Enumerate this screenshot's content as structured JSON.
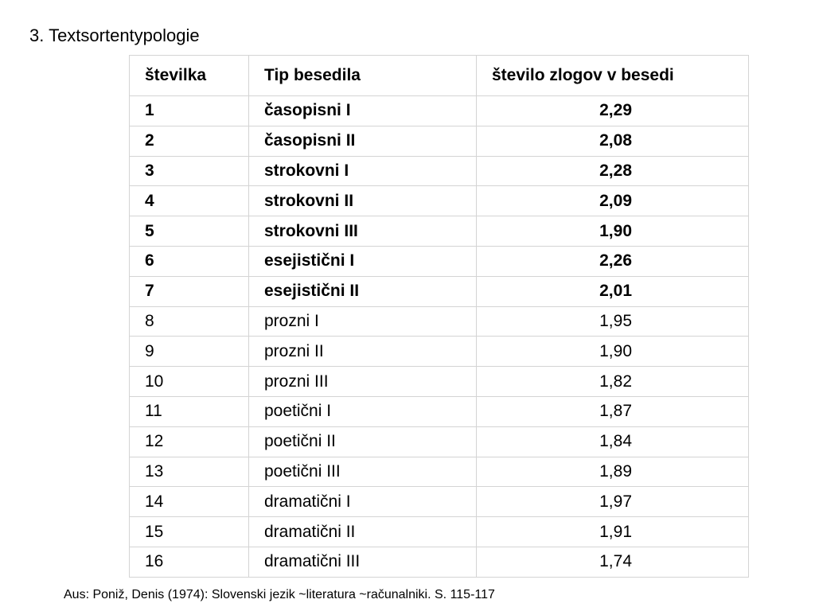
{
  "slide": {
    "title": "3. Textsortentypologie"
  },
  "table": {
    "headers": [
      "številka",
      "Tip besedila",
      "število zlogov v besedi"
    ],
    "rows": [
      {
        "nr": "1",
        "type": "časopisni I",
        "value": "2,29",
        "bold": true
      },
      {
        "nr": "2",
        "type": "časopisni II",
        "value": "2,08",
        "bold": true
      },
      {
        "nr": "3",
        "type": "strokovni I",
        "value": "2,28",
        "bold": true
      },
      {
        "nr": "4",
        "type": "strokovni II",
        "value": "2,09",
        "bold": true
      },
      {
        "nr": "5",
        "type": "strokovni III",
        "value": "1,90",
        "bold": true
      },
      {
        "nr": "6",
        "type": "esejistični I",
        "value": "2,26",
        "bold": true
      },
      {
        "nr": "7",
        "type": "esejistični II",
        "value": "2,01",
        "bold": true
      },
      {
        "nr": "8",
        "type": "prozni I",
        "value": "1,95",
        "bold": false
      },
      {
        "nr": "9",
        "type": "prozni II",
        "value": "1,90",
        "bold": false
      },
      {
        "nr": "10",
        "type": "prozni III",
        "value": "1,82",
        "bold": false
      },
      {
        "nr": "11",
        "type": "poetični I",
        "value": "1,87",
        "bold": false
      },
      {
        "nr": "12",
        "type": "poetični II",
        "value": "1,84",
        "bold": false
      },
      {
        "nr": "13",
        "type": "poetični III",
        "value": "1,89",
        "bold": false
      },
      {
        "nr": "14",
        "type": "dramatični I",
        "value": "1,97",
        "bold": false
      },
      {
        "nr": "15",
        "type": "dramatični II",
        "value": "1,91",
        "bold": false
      },
      {
        "nr": "16",
        "type": "dramatični III",
        "value": "1,74",
        "bold": false
      }
    ]
  },
  "source": "Aus: Poniž, Denis (1974): Slovenski jezik ~literatura ~računalniki. S. 115-117"
}
